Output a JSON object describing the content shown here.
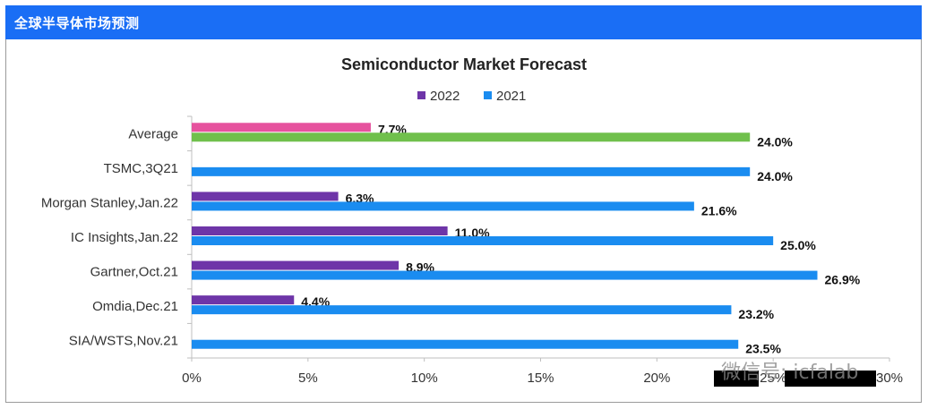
{
  "header": {
    "title": "全球半导体市场预测"
  },
  "watermark": "微信号: icfalab",
  "colors": {
    "series_2022": "#6e35a8",
    "series_2021": "#1a8cf0",
    "average_2022": "#e6529e",
    "average_2021": "#70c04c"
  },
  "chart_data": {
    "type": "bar",
    "orientation": "horizontal",
    "title": "Semiconductor Market Forecast",
    "categories": [
      "Average",
      "TSMC,3Q21",
      "Morgan Stanley,Jan.22",
      "IC Insights,Jan.22",
      "Gartner,Oct.21",
      "Omdia,Dec.21",
      "SIA/WSTS,Nov.21"
    ],
    "series": [
      {
        "name": "2022",
        "values": [
          7.7,
          null,
          6.3,
          11.0,
          8.9,
          4.4,
          null
        ]
      },
      {
        "name": "2021",
        "values": [
          24.0,
          24.0,
          21.6,
          25.0,
          26.9,
          23.2,
          23.5
        ]
      }
    ],
    "value_labels": {
      "2022": [
        "7.7%",
        "",
        "6.3%",
        "11.0%",
        "8.9%",
        "4.4%",
        ""
      ],
      "2021": [
        "24.0%",
        "24.0%",
        "21.6%",
        "25.0%",
        "26.9%",
        "23.2%",
        "23.5%"
      ]
    },
    "xlim": [
      0,
      30
    ],
    "xticks": [
      "0%",
      "5%",
      "10%",
      "15%",
      "20%",
      "25%",
      "30%"
    ],
    "legend_position": "top",
    "grid": false
  }
}
